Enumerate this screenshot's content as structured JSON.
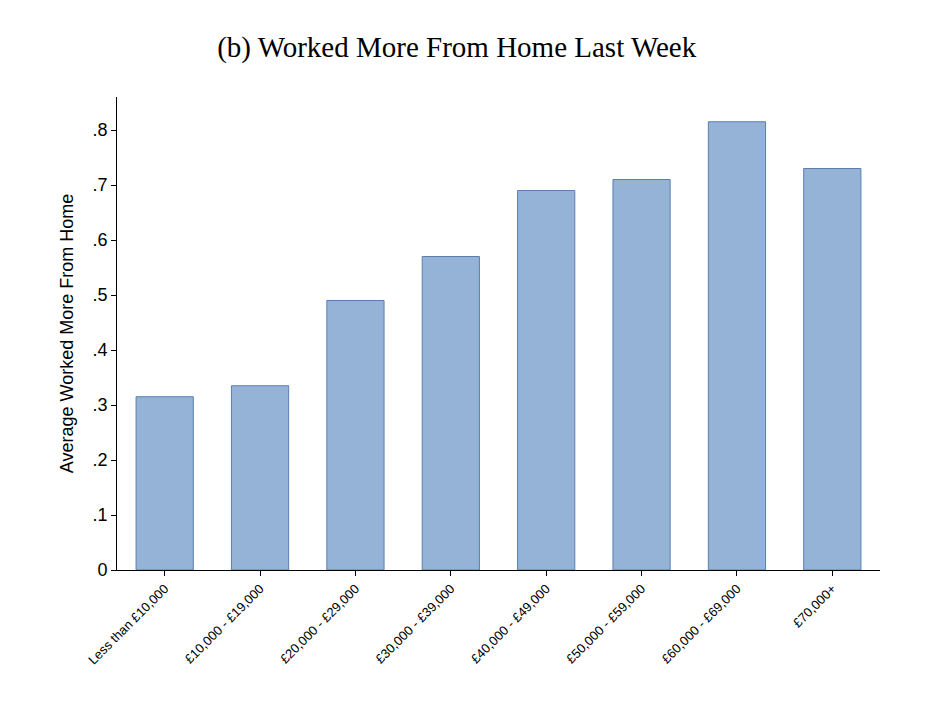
{
  "chart_data": {
    "type": "bar",
    "title": "(b) Worked More From Home Last Week",
    "y_label": "Average Worked More From Home",
    "categories": [
      "Less than £10,000",
      "£10,000 - £19,000",
      "£20,000 - £29,000",
      "£30,000 - £39,000",
      "£40,000 - £49,000",
      "£50,000 - £59,000",
      "£60,000 - £69,000",
      "£70,000+"
    ],
    "values": [
      0.315,
      0.335,
      0.49,
      0.57,
      0.69,
      0.71,
      0.815,
      0.73
    ],
    "color": "#95b3d7",
    "ylim": [
      0,
      0.86
    ],
    "yticks": [
      0,
      {
        "value": 0.1,
        "label": ".1"
      },
      {
        "value": 0.2,
        "label": ".2"
      },
      {
        "value": 0.3,
        "label": ".3"
      },
      {
        "value": 0.4,
        "label": ".4"
      },
      {
        "value": 0.5,
        "label": ".5"
      },
      {
        "value": 0.6,
        "label": ".6"
      },
      {
        "value": 0.7,
        "label": ".7"
      },
      {
        "value": 0.8,
        "label": ".8"
      }
    ],
    "grid": false
  }
}
